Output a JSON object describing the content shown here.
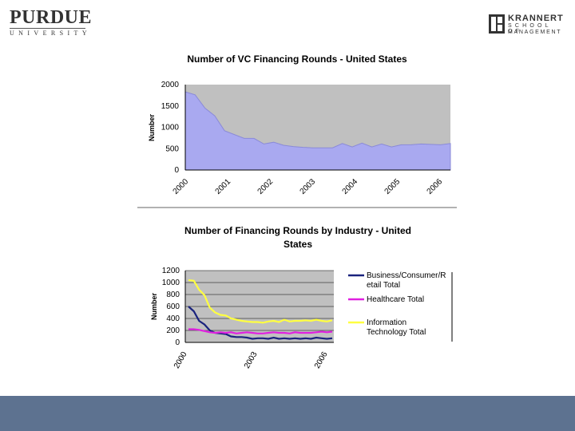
{
  "logos": {
    "purdue_word": "PURDUE",
    "purdue_sub": "UNIVERSITY",
    "krannert_name": "KRANNERT",
    "krannert_line2": "SCHOOL OF",
    "krannert_line3": "MANAGEMENT"
  },
  "colors": {
    "area_fill": "#a9a9f0",
    "area_stroke": "#8a8ad8",
    "plot_bg": "#c0c0c0",
    "business": "#1a237e",
    "healthcare": "#e020e0",
    "it": "#ffff40",
    "bottom_band": "#5d7290"
  },
  "chart_data": [
    {
      "type": "area",
      "title": "Number of VC Financing Rounds - United States",
      "ylabel": "Number",
      "xlabel": "",
      "ylim": [
        0,
        2000
      ],
      "yticks": [
        0,
        500,
        1000,
        1500,
        2000
      ],
      "xticks": [
        "2000",
        "2001",
        "2002",
        "2003",
        "2004",
        "2005",
        "2006"
      ],
      "x": [
        "2000 Q1",
        "2000 Q2",
        "2000 Q3",
        "2000 Q4",
        "2001 Q1",
        "2001 Q2",
        "2001 Q3",
        "2001 Q4",
        "2002 Q1",
        "2002 Q2",
        "2002 Q3",
        "2002 Q4",
        "2003 Q1",
        "2003 Q2",
        "2003 Q3",
        "2003 Q4",
        "2004 Q1",
        "2004 Q2",
        "2004 Q3",
        "2004 Q4",
        "2005 Q1",
        "2005 Q2",
        "2005 Q3",
        "2005 Q4",
        "2006 Q1",
        "2006 Q2",
        "2006 Q3",
        "2006 Q4"
      ],
      "series": [
        {
          "values": [
            1830,
            1760,
            1450,
            1270,
            920,
            830,
            740,
            740,
            610,
            650,
            580,
            550,
            530,
            520,
            520,
            520,
            620,
            540,
            630,
            540,
            610,
            540,
            590,
            590,
            610,
            600,
            590,
            620
          ]
        }
      ],
      "grid": false,
      "legend": "none"
    },
    {
      "type": "line",
      "title": "Number of Financing Rounds by Industry - United States",
      "ylabel": "Number",
      "xlabel": "",
      "ylim": [
        0,
        1200
      ],
      "yticks": [
        0,
        200,
        400,
        600,
        800,
        1000,
        1200
      ],
      "xticks": [
        "2000",
        "2003",
        "2006"
      ],
      "x": [
        "2000 Q1",
        "2000 Q2",
        "2000 Q3",
        "2000 Q4",
        "2001 Q1",
        "2001 Q2",
        "2001 Q3",
        "2001 Q4",
        "2002 Q1",
        "2002 Q2",
        "2002 Q3",
        "2002 Q4",
        "2003 Q1",
        "2003 Q2",
        "2003 Q3",
        "2003 Q4",
        "2004 Q1",
        "2004 Q2",
        "2004 Q3",
        "2004 Q4",
        "2005 Q1",
        "2005 Q2",
        "2005 Q3",
        "2005 Q4",
        "2006 Q1",
        "2006 Q2",
        "2006 Q3",
        "2006 Q4"
      ],
      "series": [
        {
          "name": "Business/Consumer/Retail Total",
          "values": [
            600,
            520,
            360,
            300,
            200,
            160,
            150,
            140,
            100,
            90,
            90,
            80,
            60,
            70,
            70,
            60,
            80,
            60,
            70,
            60,
            70,
            60,
            70,
            60,
            80,
            70,
            60,
            70
          ]
        },
        {
          "name": "Healthcare Total",
          "values": [
            220,
            220,
            210,
            190,
            170,
            160,
            170,
            160,
            170,
            150,
            160,
            170,
            160,
            150,
            150,
            160,
            170,
            160,
            160,
            150,
            170,
            160,
            160,
            160,
            170,
            180,
            170,
            180
          ]
        },
        {
          "name": "Information Technology Total",
          "values": [
            1040,
            1030,
            880,
            790,
            580,
            500,
            460,
            450,
            400,
            380,
            360,
            350,
            340,
            340,
            330,
            350,
            360,
            340,
            380,
            350,
            360,
            360,
            370,
            360,
            380,
            360,
            350,
            370
          ]
        }
      ],
      "legend_labels": [
        "Business/Consumer/R",
        "etail Total",
        "Healthcare Total",
        "Information",
        "Technology Total"
      ],
      "grid": true,
      "legend": "right"
    }
  ]
}
